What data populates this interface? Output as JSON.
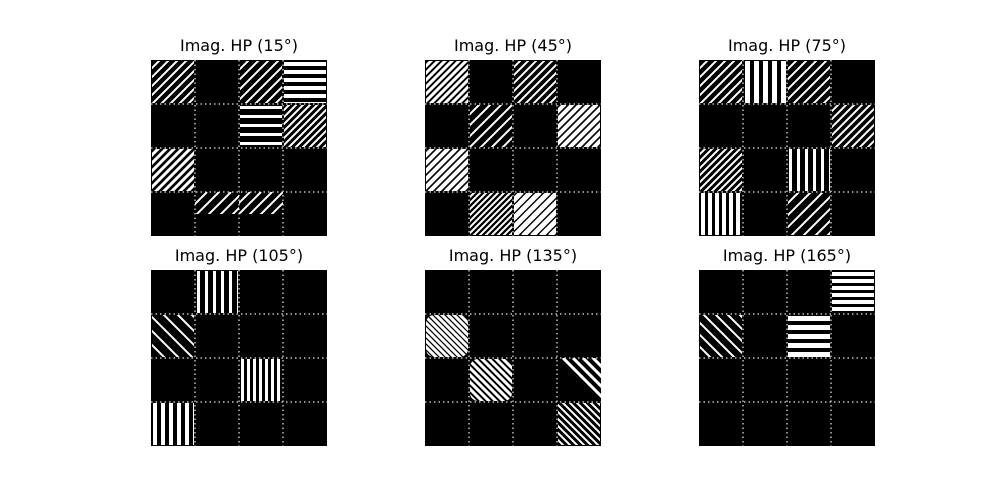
{
  "panels": [
    {
      "title": "Imag. HP (15°)",
      "tiles": [
        {
          "r": 0,
          "c": 0,
          "kind": "diag",
          "dir": "ne",
          "sp": 9,
          "th": 2
        },
        {
          "r": 0,
          "c": 2,
          "kind": "diag",
          "dir": "ne",
          "sp": 10,
          "th": 2
        },
        {
          "r": 0,
          "c": 3,
          "kind": "horiz",
          "sp": 8,
          "th": 4
        },
        {
          "r": 1,
          "c": 2,
          "kind": "horiz",
          "sp": 9,
          "th": 3
        },
        {
          "r": 1,
          "c": 3,
          "kind": "diag",
          "dir": "ne",
          "sp": 7,
          "th": 2
        },
        {
          "r": 2,
          "c": 0,
          "kind": "diag",
          "dir": "ne",
          "sp": 8,
          "th": 3
        },
        {
          "r": 3,
          "c": 1,
          "kind": "diag",
          "dir": "ne",
          "sp": 12,
          "th": 2,
          "clip": "top"
        },
        {
          "r": 3,
          "c": 2,
          "kind": "diag",
          "dir": "ne",
          "sp": 11,
          "th": 2,
          "clip": "top"
        }
      ]
    },
    {
      "title": "Imag. HP (45°)",
      "tiles": [
        {
          "r": 0,
          "c": 0,
          "kind": "diag",
          "dir": "ne",
          "sp": 7,
          "th": 3
        },
        {
          "r": 0,
          "c": 2,
          "kind": "diag",
          "dir": "ne",
          "sp": 8,
          "th": 2
        },
        {
          "r": 1,
          "c": 1,
          "kind": "diag",
          "dir": "ne",
          "sp": 11,
          "th": 2
        },
        {
          "r": 1,
          "c": 3,
          "kind": "diag",
          "dir": "ne",
          "sp": 8,
          "th": 4
        },
        {
          "r": 2,
          "c": 0,
          "kind": "diag",
          "dir": "ne",
          "sp": 8,
          "th": 4
        },
        {
          "r": 3,
          "c": 1,
          "kind": "diag",
          "dir": "ne",
          "sp": 6,
          "th": 2
        },
        {
          "r": 3,
          "c": 2,
          "kind": "diag",
          "dir": "ne",
          "sp": 9,
          "th": 5
        }
      ]
    },
    {
      "title": "Imag. HP (75°)",
      "tiles": [
        {
          "r": 0,
          "c": 0,
          "kind": "diag",
          "dir": "ne",
          "sp": 9,
          "th": 2
        },
        {
          "r": 0,
          "c": 1,
          "kind": "vert",
          "sp": 9,
          "th": 5
        },
        {
          "r": 0,
          "c": 2,
          "kind": "diag",
          "dir": "ne",
          "sp": 10,
          "th": 2
        },
        {
          "r": 1,
          "c": 3,
          "kind": "diag",
          "dir": "ne",
          "sp": 8,
          "th": 2
        },
        {
          "r": 2,
          "c": 0,
          "kind": "diag",
          "dir": "ne",
          "sp": 7,
          "th": 2
        },
        {
          "r": 2,
          "c": 2,
          "kind": "vert",
          "sp": 8,
          "th": 3
        },
        {
          "r": 3,
          "c": 0,
          "kind": "vert",
          "sp": 7,
          "th": 4
        },
        {
          "r": 3,
          "c": 2,
          "kind": "diag",
          "dir": "ne",
          "sp": 12,
          "th": 2
        }
      ]
    },
    {
      "title": "Imag. HP (105°)",
      "tiles": [
        {
          "r": 0,
          "c": 1,
          "kind": "vert",
          "sp": 8,
          "th": 3
        },
        {
          "r": 1,
          "c": 0,
          "kind": "diag",
          "dir": "nw",
          "sp": 14,
          "th": 2
        },
        {
          "r": 2,
          "c": 2,
          "kind": "vert",
          "sp": 6,
          "th": 3
        },
        {
          "r": 3,
          "c": 0,
          "kind": "vert",
          "sp": 8,
          "th": 4
        }
      ]
    },
    {
      "title": "Imag. HP (135°)",
      "tiles": [
        {
          "r": 1,
          "c": 0,
          "kind": "diag",
          "dir": "nw",
          "sp": 6,
          "th": 3,
          "round": true
        },
        {
          "r": 2,
          "c": 1,
          "kind": "diag",
          "dir": "nw",
          "sp": 7,
          "th": 3,
          "round": true
        },
        {
          "r": 2,
          "c": 3,
          "kind": "diag",
          "dir": "nw",
          "sp": 10,
          "th": 3,
          "half": true
        },
        {
          "r": 3,
          "c": 3,
          "kind": "diag",
          "dir": "nw",
          "sp": 7,
          "th": 2
        }
      ]
    },
    {
      "title": "Imag. HP (165°)",
      "tiles": [
        {
          "r": 0,
          "c": 3,
          "kind": "horiz",
          "sp": 7,
          "th": 4
        },
        {
          "r": 1,
          "c": 0,
          "kind": "diag",
          "dir": "nw",
          "sp": 12,
          "th": 2
        },
        {
          "r": 1,
          "c": 2,
          "kind": "horiz",
          "sp": 9,
          "th": 5
        }
      ]
    }
  ]
}
